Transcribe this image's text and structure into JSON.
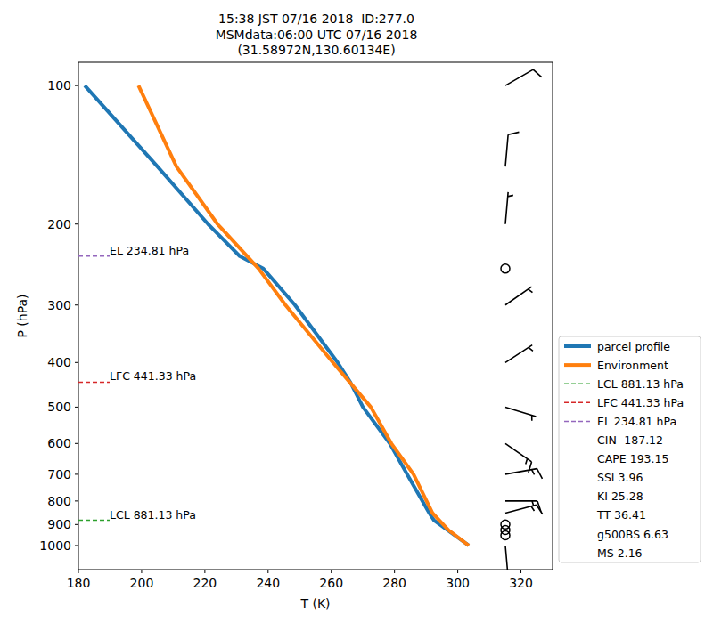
{
  "chart_data": {
    "type": "line",
    "title": "15:38 JST 07/16 2018  ID:277.0",
    "subtitle": [
      "MSMdata:06:00 UTC 07/16 2018",
      "(31.58972N,130.60134E)"
    ],
    "x_label": "T (K)",
    "y_label": "P (hPa)",
    "xlim": [
      180,
      330
    ],
    "ylim": [
      1128,
      89
    ],
    "xticks": [
      180,
      200,
      220,
      240,
      260,
      280,
      300,
      320
    ],
    "yticks": [
      100,
      200,
      300,
      400,
      500,
      600,
      700,
      800,
      900,
      1000
    ],
    "log": "y",
    "grid": false,
    "legend": "right",
    "series": [
      {
        "name": "parcel profile",
        "color": "#1f77b4",
        "x": [
          303.5,
          292.5,
          291,
          284,
          278.5,
          270,
          266,
          262,
          248.5,
          238.5,
          231,
          221,
          205,
          182
        ],
        "values": [
          1000,
          881.13,
          850,
          700,
          600,
          500,
          441.33,
          400,
          300,
          250,
          234.81,
          200,
          150,
          100
        ]
      },
      {
        "name": "Environment",
        "color": "#ff7f0e",
        "x": [
          303.5,
          297,
          292,
          286,
          279,
          272.5,
          260.5,
          245.5,
          237,
          224,
          211,
          199
        ],
        "values": [
          1000,
          925,
          850,
          700,
          600,
          500,
          400,
          300,
          250,
          200,
          150,
          100
        ]
      }
    ],
    "levels": [
      {
        "label": "LCL 881.13 hPa",
        "value": 881.13,
        "color": "#2ca02c"
      },
      {
        "label": "LFC 441.33 hPa",
        "value": 441.33,
        "color": "#d62728"
      },
      {
        "label": "EL 234.81 hPa",
        "value": 234.81,
        "color": "#9467bd"
      }
    ],
    "indices": [
      {
        "name": "CIN",
        "value": -187.12
      },
      {
        "name": "CAPE",
        "value": 193.15
      },
      {
        "name": "SSI",
        "value": 3.96
      },
      {
        "name": "KI",
        "value": 25.28
      },
      {
        "name": "TT",
        "value": 36.41
      },
      {
        "name": "g500BS",
        "value": 6.63
      },
      {
        "name": "MS",
        "value": 2.16
      }
    ],
    "wind": {
      "pressure": [
        100,
        150,
        200,
        250,
        300,
        400,
        500,
        600,
        700,
        800,
        850,
        900,
        925,
        950,
        1000
      ],
      "direction": [
        60,
        5,
        5,
        0,
        55,
        57,
        107,
        125,
        80,
        90,
        75,
        0,
        0,
        0,
        175
      ],
      "speed": [
        10,
        10,
        5,
        0,
        5,
        5,
        5,
        15,
        15,
        15,
        15,
        0,
        0,
        0,
        5
      ]
    }
  }
}
